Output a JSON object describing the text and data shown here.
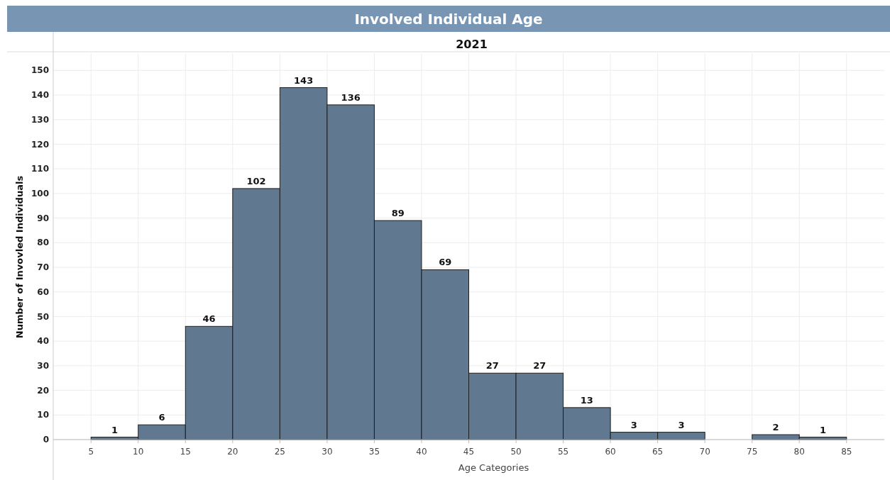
{
  "chart_data": {
    "type": "histogram",
    "title": "Involved Individual Age",
    "subtitle": "2021",
    "xlabel": "Age Categories",
    "ylabel": "Number of Invovled Individuals",
    "bins": [
      5,
      10,
      15,
      20,
      25,
      30,
      35,
      40,
      45,
      50,
      55,
      60,
      65,
      70,
      75,
      80,
      85
    ],
    "values": [
      1,
      6,
      46,
      102,
      143,
      136,
      89,
      69,
      27,
      27,
      13,
      3,
      3,
      0,
      2,
      1
    ],
    "value_labels": [
      "1",
      "6",
      "46",
      "102",
      "143",
      "136",
      "89",
      "69",
      "27",
      "27",
      "13",
      "3",
      "3",
      null,
      "2",
      "1"
    ],
    "color": "#607890",
    "xlim": [
      1,
      89
    ],
    "xticks": [
      5,
      10,
      15,
      20,
      25,
      30,
      35,
      40,
      45,
      50,
      55,
      60,
      65,
      70,
      75,
      80,
      85
    ],
    "ylim": [
      0,
      157
    ],
    "yticks": [
      0,
      10,
      20,
      30,
      40,
      50,
      60,
      70,
      80,
      90,
      100,
      110,
      120,
      130,
      140,
      150
    ],
    "grid": true
  }
}
